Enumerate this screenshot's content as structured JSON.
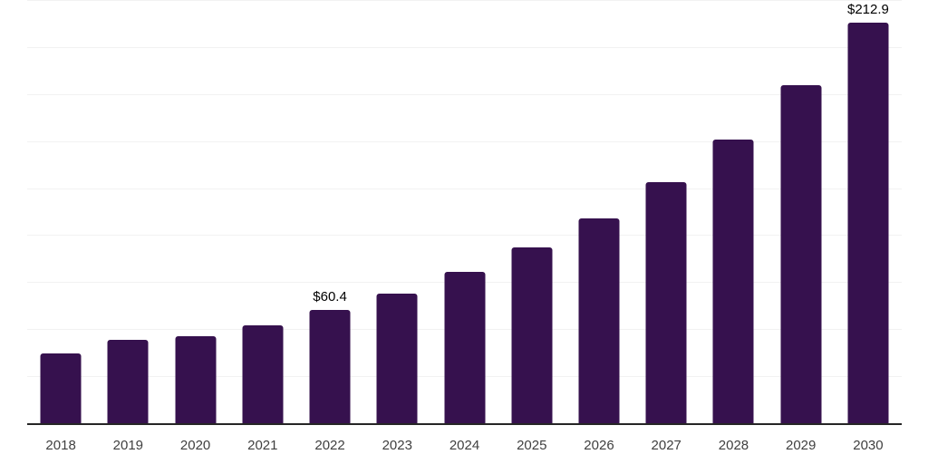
{
  "chart_data": {
    "type": "bar",
    "title": "",
    "xlabel": "",
    "ylabel": "",
    "categories": [
      "2018",
      "2019",
      "2020",
      "2021",
      "2022",
      "2023",
      "2024",
      "2025",
      "2026",
      "2027",
      "2028",
      "2029",
      "2030"
    ],
    "values": [
      37.0,
      44.1,
      46.5,
      52.1,
      60.4,
      68.9,
      80.4,
      93.5,
      109.0,
      128.0,
      151.0,
      179.8,
      212.9
    ],
    "data_labels": {
      "2022": "$60.4",
      "2030": "$212.9"
    },
    "ylim": [
      0,
      225
    ],
    "gridline_step": 25,
    "grid": "horizontal",
    "legend": "none",
    "colors": {
      "bar": "#36114E",
      "axis_line": "#262626",
      "gridline": "#f2f2f2",
      "tick_label": "#404040",
      "data_label": "#000000",
      "background": "#ffffff"
    }
  }
}
